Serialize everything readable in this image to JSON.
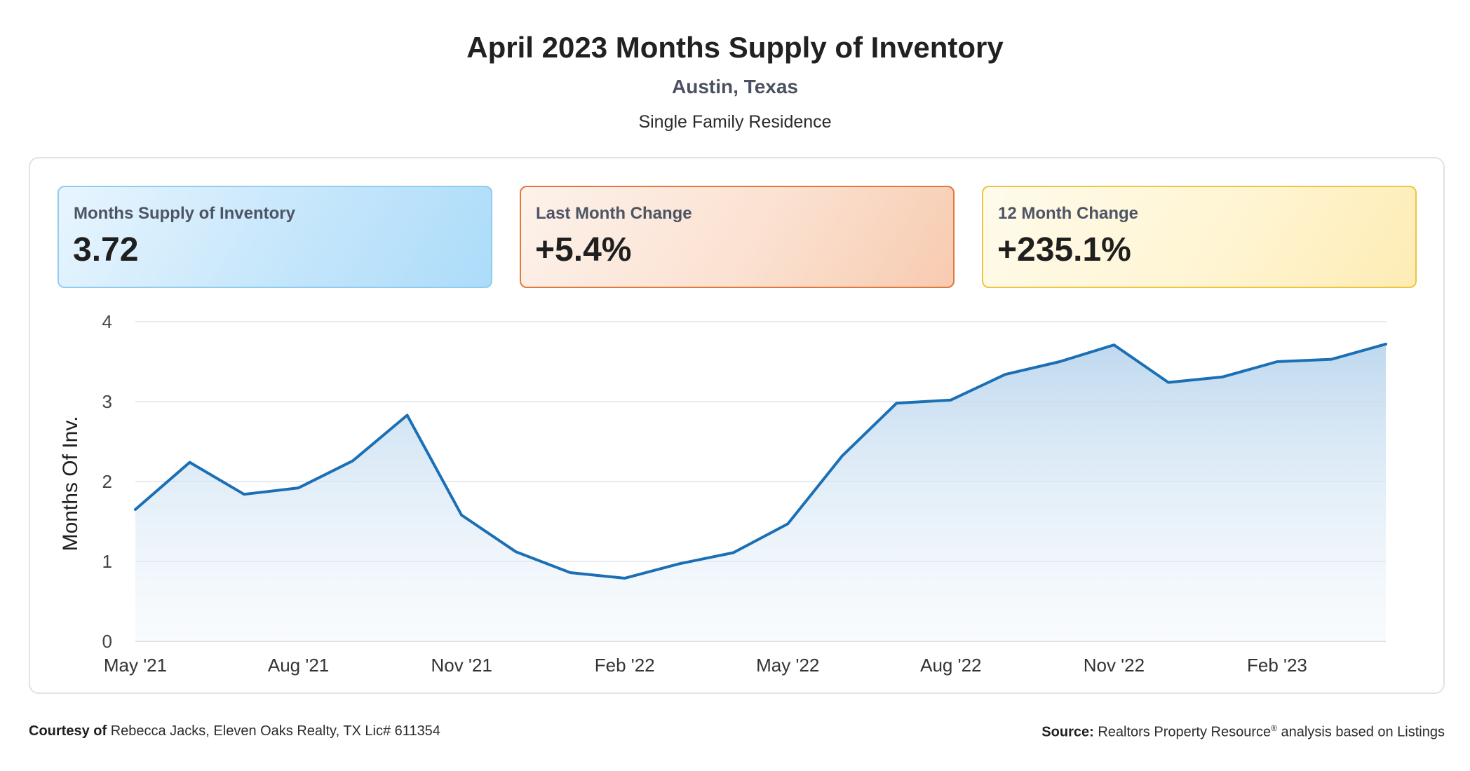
{
  "header": {
    "title": "April 2023 Months Supply of Inventory",
    "location": "Austin, Texas",
    "property_type": "Single Family Residence"
  },
  "cards": [
    {
      "label": "Months Supply of Inventory",
      "value": "3.72",
      "accent": "#8fcdef"
    },
    {
      "label": "Last Month Change",
      "value": "+5.4%",
      "accent": "#e0793a"
    },
    {
      "label": "12 Month Change",
      "value": "+235.1%",
      "accent": "#efc53b"
    }
  ],
  "footer": {
    "courtesy_label": "Courtesy of",
    "courtesy_text": "Rebecca Jacks, Eleven Oaks Realty, TX Lic# 611354",
    "source_label": "Source:",
    "source_text": "Realtors Property Resource",
    "source_mark": "®",
    "source_suffix": "analysis based on Listings"
  },
  "chart_data": {
    "type": "area",
    "ylabel": "Months Of Inv.",
    "ylim": [
      0,
      4
    ],
    "yticks": [
      "0",
      "1",
      "2",
      "3",
      "4"
    ],
    "x": [
      "May '21",
      "Jun '21",
      "Jul '21",
      "Aug '21",
      "Sep '21",
      "Oct '21",
      "Nov '21",
      "Dec '21",
      "Jan '22",
      "Feb '22",
      "Mar '22",
      "Apr '22",
      "May '22",
      "Jun '22",
      "Jul '22",
      "Aug '22",
      "Sep '22",
      "Oct '22",
      "Nov '22",
      "Dec '22",
      "Jan '23",
      "Feb '23",
      "Mar '23",
      "Apr '23"
    ],
    "xtick_labels": [
      "May '21",
      "Aug '21",
      "Nov '21",
      "Feb '22",
      "May '22",
      "Aug '22",
      "Nov '22",
      "Feb '23"
    ],
    "series": [
      {
        "values": [
          1.65,
          2.24,
          1.84,
          1.92,
          2.26,
          2.83,
          1.58,
          1.12,
          0.86,
          0.79,
          0.97,
          1.11,
          1.47,
          2.32,
          2.98,
          3.02,
          3.34,
          3.5,
          3.71,
          3.24,
          3.31,
          3.5,
          3.53,
          3.72
        ]
      }
    ],
    "grid": true,
    "line_color": "#1b6fb5",
    "fill_color": "#bcd7ee"
  }
}
